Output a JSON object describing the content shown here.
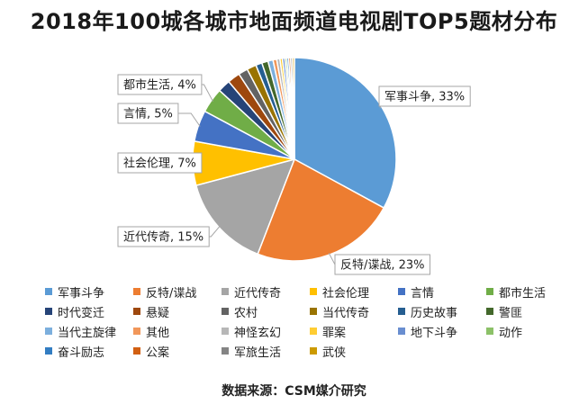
{
  "chart_data": {
    "type": "pie",
    "title": "2018年100城各城市地面频道电视剧TOP5题材分布",
    "source": "数据来源：CSM媒介研究",
    "slices": [
      {
        "name": "军事斗争",
        "value": 33,
        "color": "#5b9bd5",
        "label": "军事斗争, 33%"
      },
      {
        "name": "反特/谍战",
        "value": 23,
        "color": "#ed7d31",
        "label": "反特/谍战, 23%"
      },
      {
        "name": "近代传奇",
        "value": 15,
        "color": "#a5a5a5",
        "label": "近代传奇, 15%"
      },
      {
        "name": "社会伦理",
        "value": 7,
        "color": "#ffc000",
        "label": "社会伦理, 7%"
      },
      {
        "name": "言情",
        "value": 5,
        "color": "#4472c4",
        "label": "言情, 5%"
      },
      {
        "name": "都市生活",
        "value": 4,
        "color": "#70ad47",
        "label": "都市生活, 4%"
      },
      {
        "name": "时代变迁",
        "value": 2,
        "color": "#264478"
      },
      {
        "name": "悬疑",
        "value": 2,
        "color": "#9e480e"
      },
      {
        "name": "农村",
        "value": 1.5,
        "color": "#636363"
      },
      {
        "name": "当代传奇",
        "value": 1.5,
        "color": "#997300"
      },
      {
        "name": "历史故事",
        "value": 1,
        "color": "#255e91"
      },
      {
        "name": "警匪",
        "value": 1,
        "color": "#43682b"
      },
      {
        "name": "当代主旋律",
        "value": 0.8,
        "color": "#7cafdd"
      },
      {
        "name": "其他",
        "value": 0.6,
        "color": "#f1975a"
      },
      {
        "name": "神怪玄幻",
        "value": 0.5,
        "color": "#b7b7b7"
      },
      {
        "name": "罪案",
        "value": 0.4,
        "color": "#ffcd33"
      },
      {
        "name": "地下斗争",
        "value": 0.4,
        "color": "#698ed0"
      },
      {
        "name": "动作",
        "value": 0.3,
        "color": "#8cc168"
      },
      {
        "name": "奋斗励志",
        "value": 0.3,
        "color": "#327dc2"
      },
      {
        "name": "公案",
        "value": 0.3,
        "color": "#d26012"
      },
      {
        "name": "军旅生活",
        "value": 0.3,
        "color": "#848484"
      },
      {
        "name": "武侠",
        "value": 0.3,
        "color": "#cc9a00"
      }
    ]
  }
}
